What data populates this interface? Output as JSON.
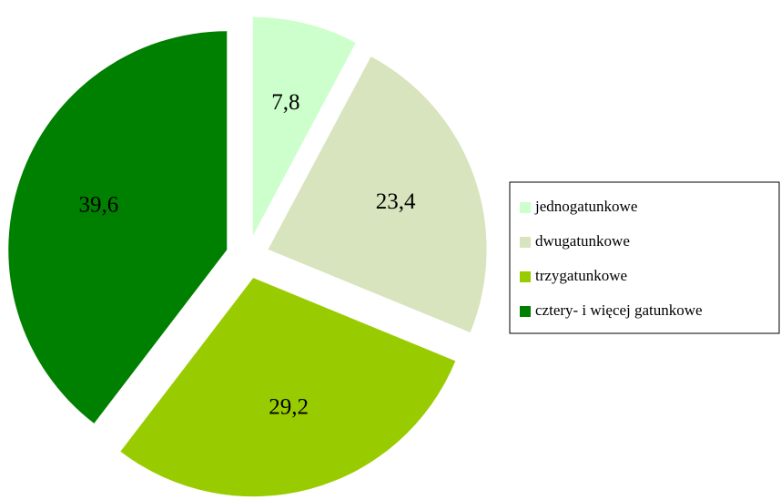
{
  "chart_data": {
    "type": "pie",
    "categories": [
      "jednogatunkowe",
      "dwugatunkowe",
      "trzygatunkowe",
      "cztery- i więcej gatunkowe"
    ],
    "values": [
      7.8,
      23.4,
      29.2,
      39.6
    ],
    "value_labels": [
      "7,8",
      "23,4",
      "29,2",
      "39,6"
    ],
    "colors": [
      "#ccffcc",
      "#d7e4bd",
      "#99cc00",
      "#008000"
    ],
    "legend": "right"
  }
}
